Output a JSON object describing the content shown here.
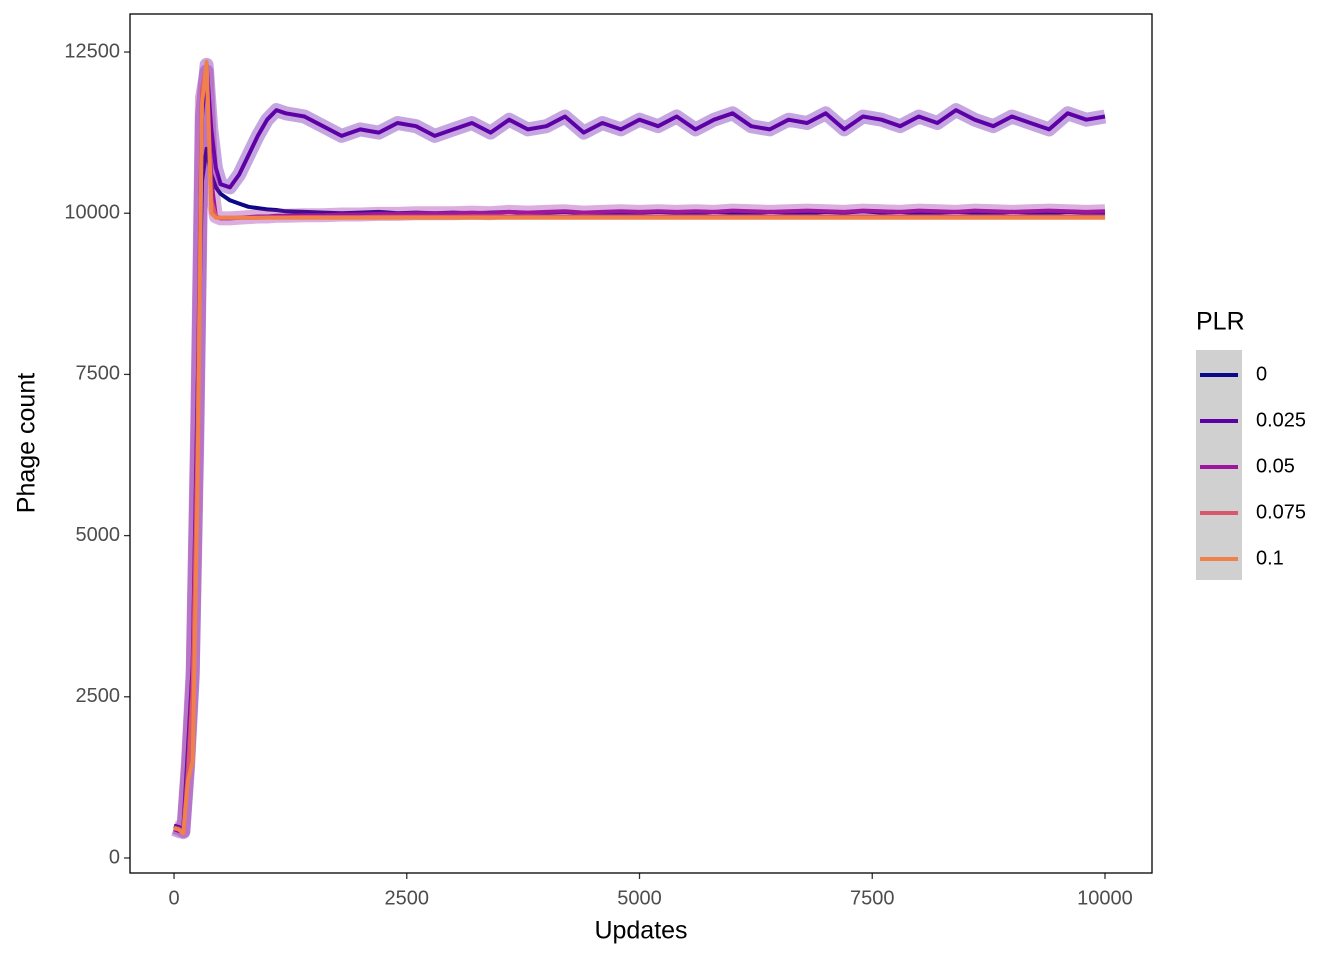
{
  "chart_data": {
    "type": "line",
    "x_label": "Updates",
    "y_label": "Phage count",
    "legend_title": "PLR",
    "legend_position": "right",
    "xlim": [
      -473,
      10505
    ],
    "ylim": [
      -233,
      13090
    ],
    "xticks": [
      0,
      2500,
      5000,
      7500,
      10000
    ],
    "yticks": [
      0,
      2500,
      5000,
      7500,
      10000,
      12500
    ],
    "grid": false,
    "x": [
      0,
      50,
      100,
      150,
      200,
      250,
      300,
      350,
      400,
      450,
      500,
      600,
      700,
      800,
      900,
      1000,
      1100,
      1200,
      1400,
      1600,
      1800,
      2000,
      2200,
      2400,
      2600,
      2800,
      3000,
      3200,
      3400,
      3600,
      3800,
      4000,
      4200,
      4400,
      4600,
      4800,
      5000,
      5200,
      5400,
      5600,
      5800,
      6000,
      6200,
      6400,
      6600,
      6800,
      7000,
      7200,
      7400,
      7600,
      7800,
      8000,
      8200,
      8400,
      8600,
      8800,
      9000,
      9200,
      9400,
      9600,
      9800,
      10000
    ],
    "series": [
      {
        "name": "0",
        "color": "#0d0887",
        "values": [
          500,
          480,
          450,
          1700,
          3000,
          7000,
          10500,
          11000,
          10600,
          10400,
          10300,
          10200,
          10150,
          10100,
          10080,
          10060,
          10050,
          10030,
          10020,
          10010,
          10000,
          10010,
          10020,
          10000,
          10010,
          10000,
          10010,
          10000,
          10010,
          10020,
          10000,
          10010,
          10020,
          10000,
          10010,
          10000,
          10010,
          10020,
          10010,
          10000,
          10020,
          10010,
          10000,
          10020,
          10010,
          10000,
          10020,
          10010,
          10030,
          10010,
          10020,
          10000,
          10010,
          10020,
          10010,
          10000,
          10020,
          10010,
          10000,
          10020,
          10010,
          10000
        ]
      },
      {
        "name": "0.025",
        "color": "#5d01a6",
        "values": [
          450,
          420,
          400,
          1400,
          2800,
          6500,
          11500,
          12300,
          11300,
          10700,
          10450,
          10400,
          10600,
          10900,
          11200,
          11450,
          11600,
          11550,
          11500,
          11350,
          11200,
          11300,
          11250,
          11400,
          11350,
          11200,
          11300,
          11400,
          11250,
          11450,
          11300,
          11350,
          11500,
          11250,
          11400,
          11300,
          11450,
          11350,
          11500,
          11300,
          11450,
          11550,
          11350,
          11300,
          11450,
          11400,
          11550,
          11300,
          11500,
          11450,
          11350,
          11500,
          11400,
          11600,
          11450,
          11350,
          11500,
          11400,
          11300,
          11550,
          11450,
          11500
        ]
      },
      {
        "name": "0.05",
        "color": "#9c179e",
        "values": [
          480,
          460,
          420,
          1500,
          2900,
          6800,
          11800,
          12200,
          10500,
          9950,
          9920,
          9920,
          9930,
          9940,
          9950,
          9950,
          9960,
          9960,
          9970,
          9970,
          9980,
          9980,
          9990,
          9990,
          10000,
          10000,
          10000,
          10010,
          10000,
          10020,
          10010,
          10020,
          10030,
          10010,
          10020,
          10030,
          10020,
          10030,
          10020,
          10030,
          10020,
          10040,
          10030,
          10020,
          10030,
          10040,
          10030,
          10020,
          10040,
          10030,
          10020,
          10040,
          10030,
          10020,
          10040,
          10030,
          10020,
          10030,
          10040,
          10030,
          10020,
          10030
        ]
      },
      {
        "name": "0.075",
        "color": "#d8576b",
        "values": [
          470,
          450,
          400,
          1300,
          2600,
          6200,
          11900,
          12300,
          10200,
          9940,
          9930,
          9930,
          9930,
          9930,
          9930,
          9935,
          9935,
          9935,
          9940,
          9940,
          9940,
          9940,
          9945,
          9945,
          9945,
          9945,
          9945,
          9950,
          9950,
          9950,
          9950,
          9950,
          9950,
          9950,
          9950,
          9950,
          9950,
          9950,
          9950,
          9950,
          9950,
          9950,
          9950,
          9950,
          9950,
          9950,
          9950,
          9950,
          9950,
          9950,
          9950,
          9950,
          9950,
          9950,
          9950,
          9950,
          9950,
          9950,
          9950,
          9950,
          9950,
          9950
        ]
      },
      {
        "name": "0.1",
        "color": "#f0804c",
        "values": [
          460,
          440,
          380,
          1200,
          1500,
          5500,
          11700,
          12350,
          10000,
          9930,
          9930,
          9930,
          9930,
          9930,
          9930,
          9930,
          9930,
          9930,
          9930,
          9930,
          9930,
          9930,
          9930,
          9930,
          9930,
          9930,
          9930,
          9930,
          9930,
          9930,
          9930,
          9930,
          9930,
          9930,
          9930,
          9930,
          9930,
          9930,
          9930,
          9930,
          9930,
          9930,
          9930,
          9930,
          9930,
          9930,
          9930,
          9930,
          9930,
          9930,
          9930,
          9930,
          9930,
          9930,
          9930,
          9930,
          9930,
          9930,
          9930,
          9930,
          9930,
          9930
        ]
      }
    ]
  }
}
